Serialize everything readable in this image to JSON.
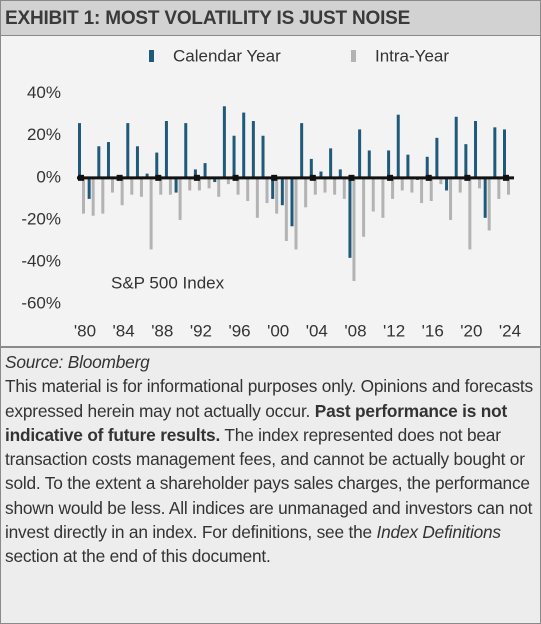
{
  "chart_data": {
    "type": "bar",
    "title": "EXHIBIT 1: MOST VOLATILITY IS JUST NOISE",
    "annotation": "S&P 500 Index",
    "categories": [
      "'80",
      null,
      null,
      null,
      "'84",
      null,
      null,
      null,
      "'88",
      null,
      null,
      null,
      "'92",
      null,
      null,
      null,
      "'96",
      null,
      null,
      null,
      "'00",
      null,
      null,
      null,
      "'04",
      null,
      null,
      null,
      "'08",
      null,
      null,
      null,
      "'12",
      null,
      null,
      null,
      "'16",
      null,
      null,
      null,
      "'20",
      null,
      null,
      null,
      "'24"
    ],
    "series": [
      {
        "name": "Calendar Year",
        "color": "#1f5a7a",
        "values": [
          26,
          -10,
          15,
          17,
          1,
          26,
          15,
          2,
          12,
          27,
          -7,
          26,
          4,
          7,
          -2,
          34,
          20,
          31,
          27,
          20,
          -10,
          -13,
          -23,
          26,
          9,
          3,
          14,
          4,
          -38,
          23,
          13,
          0,
          13,
          30,
          11,
          -1,
          10,
          19,
          -6,
          29,
          16,
          27,
          -19,
          24,
          23
        ]
      },
      {
        "name": "Intra-Year",
        "color": "#b3b3b3",
        "values": [
          -17,
          -18,
          -17,
          -7,
          -13,
          -8,
          -9,
          -34,
          -8,
          -8,
          -20,
          -6,
          -6,
          -5,
          -9,
          -3,
          -8,
          -11,
          -19,
          -12,
          -17,
          -30,
          -34,
          -14,
          -8,
          -7,
          -8,
          -10,
          -49,
          -28,
          -16,
          -19,
          -10,
          -6,
          -7,
          -12,
          -11,
          -3,
          -20,
          -7,
          -34,
          -5,
          -25,
          -10,
          -8
        ]
      }
    ],
    "ylim": [
      -68,
      46
    ],
    "yticks": [
      {
        "value": 40,
        "label": "40%"
      },
      {
        "value": 20,
        "label": "20%"
      },
      {
        "value": 0,
        "label": "0%"
      },
      {
        "value": -20,
        "label": "-20%"
      },
      {
        "value": -40,
        "label": "-40%"
      },
      {
        "value": -60,
        "label": "-60%"
      }
    ],
    "grid": false
  },
  "footer": {
    "source": "Source: Bloomberg",
    "disclaimer": [
      "This material is for informational purposes only. Opinions and forecasts expressed herein may not actually occur. ",
      "Past performance is not indicative of future results.",
      " The index represented does not bear transaction costs management fees, and cannot be actually bought or sold. To the extent a shareholder pays sales charges, the performance shown would be less. All indices are unmanaged and investors can not invest directly in an index. For definitions, see the ",
      "Index Definitions",
      " section at the end of this document."
    ]
  }
}
